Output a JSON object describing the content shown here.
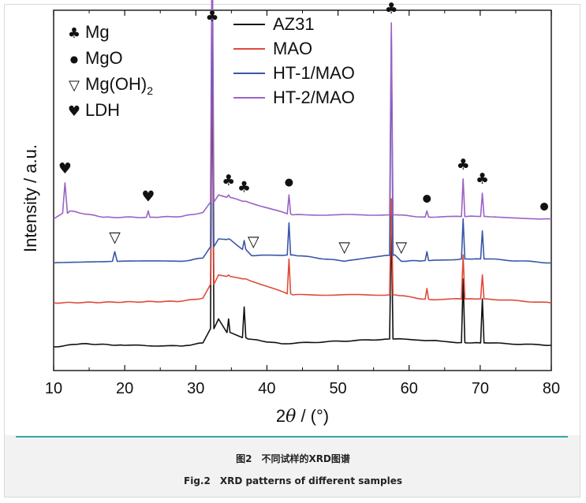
{
  "chart_data": {
    "type": "line",
    "xlabel": "2θ / (°)",
    "ylabel": "Intensity / a.u.",
    "xlim": [
      10,
      80
    ],
    "xticks": [
      10,
      20,
      30,
      40,
      50,
      60,
      70,
      80
    ],
    "grid": false,
    "legend": {
      "placement": "top-center",
      "entries": [
        "AZ31",
        "MAO",
        "HT-1/MAO",
        "HT-2/MAO"
      ]
    },
    "phase_key": {
      "placement": "top-left",
      "entries": [
        {
          "symbol": "♣",
          "label": "Mg"
        },
        {
          "symbol": "●",
          "label": "MgO"
        },
        {
          "symbol": "▽",
          "label": "Mg(OH)",
          "subscript": "2"
        },
        {
          "symbol": "♥",
          "label": "LDH"
        }
      ]
    },
    "series": [
      {
        "name": "AZ31",
        "color": "#111111",
        "baseline": 0.0,
        "points": [
          [
            10,
            0.0
          ],
          [
            14,
            0.04
          ],
          [
            20,
            0.02
          ],
          [
            28,
            0.01
          ],
          [
            31,
            0.05
          ],
          [
            32.3,
            4.15
          ],
          [
            33.2,
            0.35
          ],
          [
            34.4,
            0.18
          ],
          [
            34.6,
            0.35
          ],
          [
            34.8,
            0.18
          ],
          [
            36.8,
            0.5
          ],
          [
            37.3,
            0.1
          ],
          [
            42,
            0.04
          ],
          [
            57.5,
            1.6
          ],
          [
            58,
            0.1
          ],
          [
            63,
            0.08
          ],
          [
            67.6,
            0.85
          ],
          [
            68.1,
            0.05
          ],
          [
            70.3,
            0.6
          ],
          [
            70.8,
            0.05
          ],
          [
            80,
            0.02
          ]
        ],
        "peaks": [
          32.3,
          34.6,
          36.8,
          57.5,
          67.6,
          70.3
        ]
      },
      {
        "name": "MAO",
        "color": "#e04a3a",
        "baseline": 0.55,
        "points": [
          [
            10,
            0.0
          ],
          [
            28,
            0.02
          ],
          [
            31,
            0.06
          ],
          [
            32.3,
            3.5
          ],
          [
            33.2,
            0.35
          ],
          [
            34.6,
            0.35
          ],
          [
            36.8,
            0.3
          ],
          [
            43.1,
            0.55
          ],
          [
            43.6,
            0.1
          ],
          [
            57.5,
            1.3
          ],
          [
            58,
            0.1
          ],
          [
            62.5,
            0.18
          ],
          [
            63,
            0.04
          ],
          [
            67.6,
            0.6
          ],
          [
            68.1,
            0.05
          ],
          [
            70.3,
            0.35
          ],
          [
            70.8,
            0.05
          ],
          [
            80,
            0.0
          ]
        ],
        "peaks": [
          32.3,
          34.6,
          36.8,
          43.1,
          57.5,
          62.5,
          67.6,
          70.3
        ]
      },
      {
        "name": "HT-1/MAO",
        "color": "#3a56a8",
        "baseline": 1.05,
        "points": [
          [
            10,
            0.0
          ],
          [
            18.6,
            0.14
          ],
          [
            19.2,
            0.02
          ],
          [
            28,
            0.02
          ],
          [
            31,
            0.06
          ],
          [
            32.3,
            3.45
          ],
          [
            33.2,
            0.3
          ],
          [
            34.6,
            0.3
          ],
          [
            36.8,
            0.28
          ],
          [
            38.1,
            0.09
          ],
          [
            43.1,
            0.5
          ],
          [
            43.6,
            0.1
          ],
          [
            50.9,
            0.02
          ],
          [
            57.5,
            2.85
          ],
          [
            58,
            0.1
          ],
          [
            58.9,
            0.02
          ],
          [
            62.5,
            0.14
          ],
          [
            63,
            0.03
          ],
          [
            67.6,
            0.55
          ],
          [
            68.1,
            0.05
          ],
          [
            70.3,
            0.4
          ],
          [
            70.8,
            0.05
          ],
          [
            80,
            0.0
          ]
        ],
        "peaks": [
          18.6,
          32.3,
          34.6,
          36.8,
          38.1,
          43.1,
          57.5,
          62.5,
          67.6,
          70.3
        ]
      },
      {
        "name": "HT-2/MAO",
        "color": "#9a63c4",
        "baseline": 1.6,
        "points": [
          [
            10,
            0.0
          ],
          [
            11.6,
            0.45
          ],
          [
            12.3,
            0.1
          ],
          [
            17,
            0.02
          ],
          [
            23.3,
            0.1
          ],
          [
            24,
            0.02
          ],
          [
            28,
            0.03
          ],
          [
            31,
            0.08
          ],
          [
            32.3,
            3.8
          ],
          [
            33.2,
            0.3
          ],
          [
            34.6,
            0.3
          ],
          [
            36.8,
            0.22
          ],
          [
            43.1,
            0.3
          ],
          [
            43.6,
            0.05
          ],
          [
            57.5,
            2.45
          ],
          [
            58,
            0.05
          ],
          [
            62.5,
            0.1
          ],
          [
            63,
            0.02
          ],
          [
            67.6,
            0.5
          ],
          [
            68.1,
            0.03
          ],
          [
            70.3,
            0.32
          ],
          [
            70.8,
            0.03
          ],
          [
            79,
            0.0
          ],
          [
            80,
            0.0
          ]
        ],
        "peaks": [
          11.6,
          23.3,
          32.3,
          34.6,
          36.8,
          43.1,
          57.5,
          62.5,
          67.6,
          70.3
        ]
      }
    ],
    "peak_markers": [
      {
        "x": 11.6,
        "symbol": "♥"
      },
      {
        "x": 23.3,
        "symbol": "♥"
      },
      {
        "x": 32.3,
        "symbol": "♣"
      },
      {
        "x": 34.6,
        "symbol": "♣"
      },
      {
        "x": 36.8,
        "symbol": "♣"
      },
      {
        "x": 43.1,
        "symbol": "●"
      },
      {
        "x": 57.5,
        "symbol": "♣"
      },
      {
        "x": 62.5,
        "symbol": "●"
      },
      {
        "x": 67.6,
        "symbol": "♣"
      },
      {
        "x": 70.3,
        "symbol": "♣"
      },
      {
        "x": 79.0,
        "symbol": "●"
      },
      {
        "x": 18.6,
        "symbol": "▽"
      },
      {
        "x": 38.1,
        "symbol": "▽"
      },
      {
        "x": 50.9,
        "symbol": "▽"
      },
      {
        "x": 58.9,
        "symbol": "▽"
      }
    ]
  },
  "caption": {
    "cn": "图2　不同试样的XRD图谱",
    "en": "Fig.2　XRD patterns of different samples"
  }
}
